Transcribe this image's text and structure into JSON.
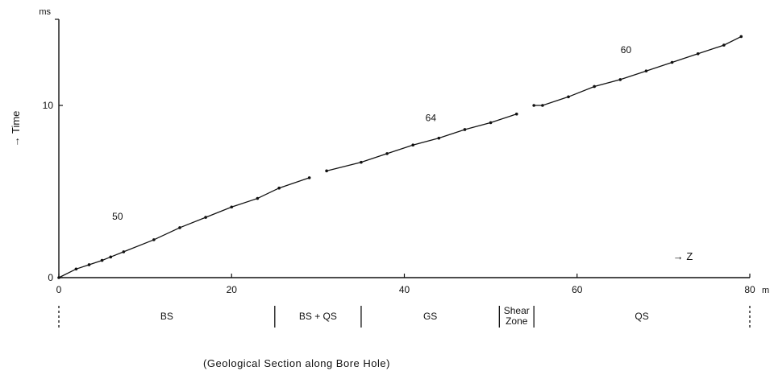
{
  "chart_data": {
    "type": "line",
    "xlabel": "Z",
    "ylabel": "Time",
    "x_unit": "m",
    "y_unit": "ms",
    "xlim": [
      0,
      80
    ],
    "ylim": [
      0,
      15
    ],
    "x_ticks": [
      0,
      20,
      40,
      60,
      80
    ],
    "y_ticks": [
      0,
      10
    ],
    "grid": false,
    "series": [
      {
        "label": "50",
        "points": [
          [
            0,
            0
          ],
          [
            2,
            0.5
          ],
          [
            3.5,
            0.75
          ],
          [
            5,
            1.0
          ],
          [
            6,
            1.2
          ],
          [
            7.5,
            1.5
          ],
          [
            11,
            2.2
          ],
          [
            14,
            2.9
          ],
          [
            17,
            3.5
          ],
          [
            20,
            4.1
          ],
          [
            23,
            4.6
          ],
          [
            25.5,
            5.2
          ],
          [
            29,
            5.8
          ]
        ]
      },
      {
        "label": "64",
        "points": [
          [
            31,
            6.2
          ],
          [
            35,
            6.7
          ],
          [
            38,
            7.2
          ],
          [
            41,
            7.7
          ],
          [
            44,
            8.1
          ],
          [
            47,
            8.6
          ],
          [
            50,
            9.0
          ],
          [
            53,
            9.5
          ]
        ]
      },
      {
        "label": "60",
        "points": [
          [
            55,
            10.0
          ],
          [
            56,
            10.0
          ],
          [
            59,
            10.5
          ],
          [
            62,
            11.1
          ],
          [
            65,
            11.5
          ],
          [
            68,
            12.0
          ],
          [
            71,
            12.5
          ],
          [
            74,
            13.0
          ],
          [
            77,
            13.5
          ],
          [
            79,
            14.0
          ]
        ]
      }
    ],
    "sections": [
      {
        "label": "BS",
        "from": 0,
        "to": 25
      },
      {
        "label": "BS + QS",
        "from": 25,
        "to": 35
      },
      {
        "label": "GS",
        "from": 35,
        "to": 51
      },
      {
        "label": "Shear Zone",
        "from": 51,
        "to": 55
      },
      {
        "label": "QS",
        "from": 55,
        "to": 80
      }
    ],
    "caption": "(Geological Section along Bore Hole)",
    "colors": {
      "line": "#111111",
      "background": "#ffffff"
    }
  }
}
